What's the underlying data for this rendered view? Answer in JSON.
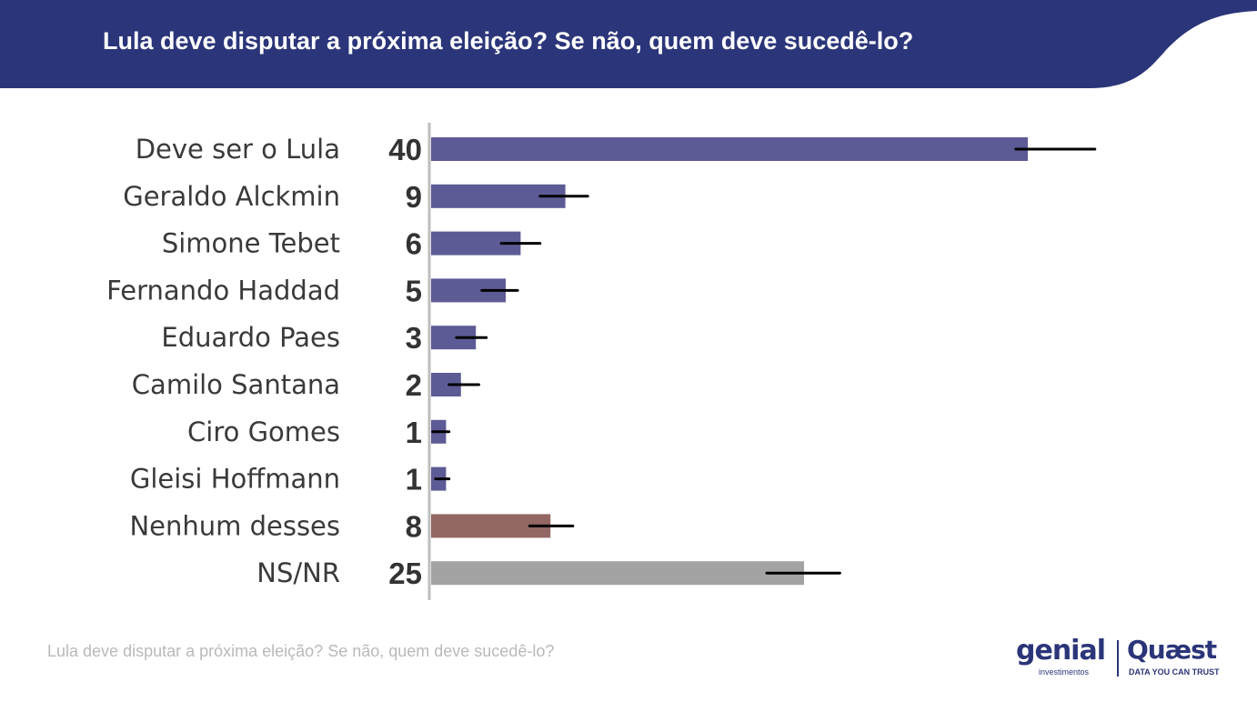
{
  "header": {
    "title": "Lula deve disputar a próxima eleição? Se não, quem deve sucedê-lo?"
  },
  "chart_data": {
    "type": "bar",
    "orientation": "horizontal",
    "categories": [
      "Deve ser o Lula",
      "Geraldo Alckmin",
      "Simone Tebet",
      "Fernando Haddad",
      "Eduardo Paes",
      "Camilo Santana",
      "Ciro Gomes",
      "Gleisi Hoffmann",
      "Nenhum desses",
      "NS/NR"
    ],
    "values": [
      40,
      9,
      6,
      5,
      3,
      2,
      1,
      1,
      8,
      25
    ],
    "value_labels": [
      "40",
      "9",
      "6",
      "5",
      "3",
      "2",
      "1",
      "1",
      "8",
      "25"
    ],
    "error_low": [
      39.2,
      7.3,
      4.7,
      3.4,
      1.7,
      1.2,
      0.1,
      0.3,
      6.6,
      22.5
    ],
    "error_high": [
      44.5,
      10.5,
      7.3,
      5.8,
      3.7,
      3.2,
      1.2,
      1.2,
      9.5,
      27.4
    ],
    "bar_colors": [
      "#5d5b95",
      "#5d5b95",
      "#5d5b95",
      "#5d5b95",
      "#5d5b95",
      "#5d5b95",
      "#5d5b95",
      "#5d5b95",
      "#936763",
      "#a3a3a3"
    ],
    "xlim": [
      0,
      45
    ]
  },
  "footer": {
    "caption": "Lula deve disputar a próxima eleição? Se não, quem deve sucedê-lo?"
  },
  "logos": {
    "genial": "genial",
    "genial_sub": "investimentos",
    "quaest": "Quæst",
    "quaest_sub": "DATA YOU CAN TRUST"
  },
  "colors": {
    "header_bg": "#2b3579",
    "axis": "#bdbdbd",
    "error_bar": "#000000"
  }
}
